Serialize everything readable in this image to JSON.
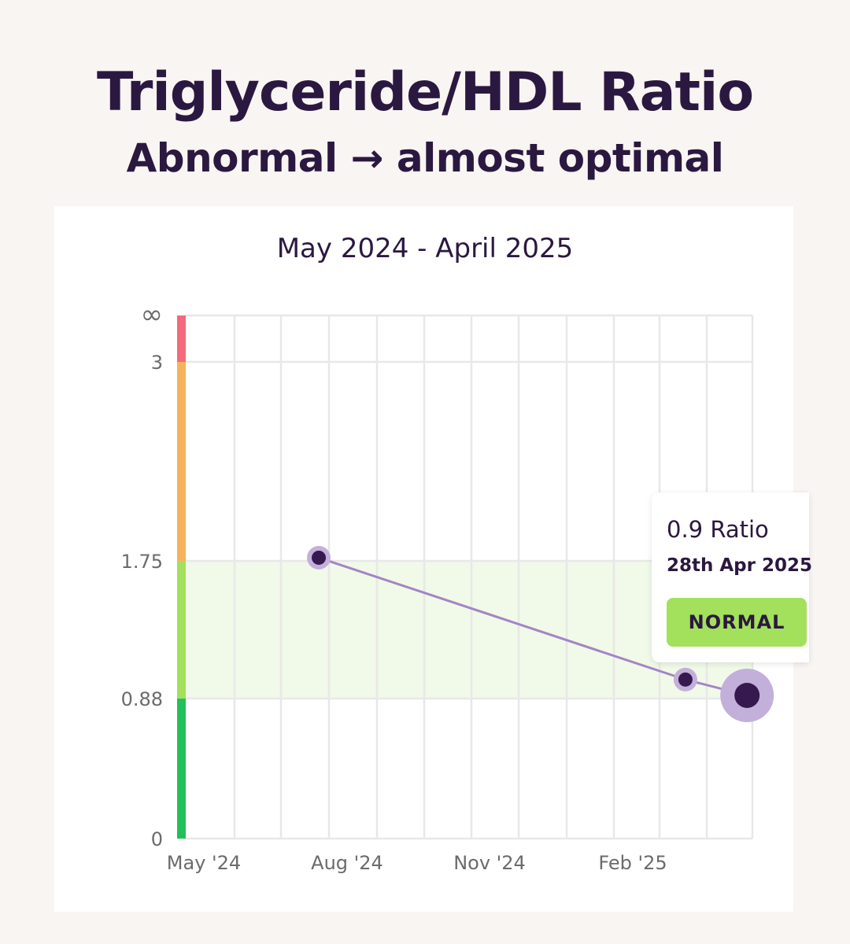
{
  "header": {
    "title": "Triglyceride/HDL Ratio",
    "subtitle": "Abnormal → almost optimal"
  },
  "chart_data": {
    "type": "line",
    "title": "May 2024 - April 2025",
    "xlabel": "",
    "ylabel": "",
    "x_ticks": [
      "May '24",
      "Aug '24",
      "Nov '24",
      "Feb '25"
    ],
    "y_ticks": [
      "0",
      "0.88",
      "1.75",
      "3",
      "∞"
    ],
    "grid": true,
    "series": [
      {
        "points": [
          {
            "x": "2024-07-17",
            "y": 1.77
          },
          {
            "x": "2025-03-18",
            "y": 1.0
          },
          {
            "x": "2025-04-28",
            "y": 0.9
          }
        ]
      }
    ],
    "ranges": [
      {
        "from": 0,
        "to": 0.88,
        "color": "#22c05c"
      },
      {
        "from": 0.88,
        "to": 1.75,
        "color": "#a3e05c"
      },
      {
        "from": 1.75,
        "to": 3,
        "color": "#f4b45c"
      },
      {
        "from": 3,
        "to": "∞",
        "color": "#f46a7c"
      }
    ],
    "highlight_band": {
      "from": 0.88,
      "to": 1.75,
      "color": "#f1f9e8"
    },
    "line_color": "#a385c4",
    "point_color": "#36194f",
    "halo_color": "#c3b0da"
  },
  "tooltip": {
    "value": "0.9 Ratio",
    "date": "28th Apr 2025",
    "status": "NORMAL"
  }
}
